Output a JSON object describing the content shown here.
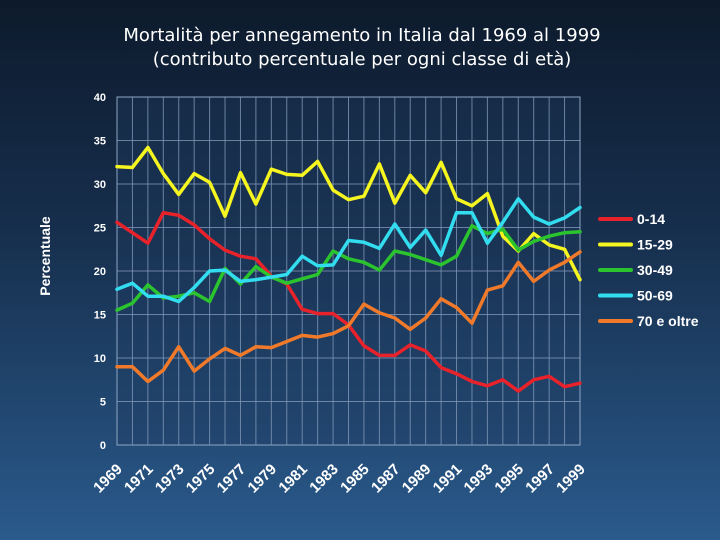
{
  "chart_data": {
    "type": "line",
    "title_lines": [
      "Mortalità per annegamento in Italia dal 1969 al 1999",
      "(contributo percentuale per ogni classe di età)"
    ],
    "xlabel": "",
    "ylabel": "Percentuale",
    "ylim": [
      0,
      40
    ],
    "yticks": [
      0,
      5,
      10,
      15,
      20,
      25,
      30,
      35,
      40
    ],
    "x": [
      1969,
      1970,
      1971,
      1972,
      1973,
      1974,
      1975,
      1976,
      1977,
      1978,
      1979,
      1980,
      1981,
      1982,
      1983,
      1984,
      1985,
      1986,
      1987,
      1988,
      1989,
      1990,
      1991,
      1992,
      1993,
      1994,
      1995,
      1996,
      1997,
      1998,
      1999
    ],
    "xtick_labels": [
      "1969",
      "1971",
      "1973",
      "1975",
      "1977",
      "1979",
      "1981",
      "1983",
      "1985",
      "1987",
      "1989",
      "1991",
      "1993",
      "1995",
      "1997",
      "1999"
    ],
    "grid": true,
    "legend_position": "right",
    "series": [
      {
        "name": "0-14",
        "color": "#e8222a",
        "values": [
          25.6,
          24.4,
          23.2,
          26.7,
          26.4,
          25.3,
          23.7,
          22.4,
          21.7,
          21.4,
          19.4,
          18.5,
          15.6,
          15.1,
          15.1,
          13.8,
          11.4,
          10.3,
          10.3,
          11.5,
          10.8,
          8.9,
          8.2,
          7.3,
          6.8,
          7.5,
          6.2,
          7.5,
          7.9,
          6.7,
          7.1
        ]
      },
      {
        "name": "15-29",
        "color": "#f5f51f",
        "values": [
          32.0,
          31.9,
          34.2,
          31.2,
          28.8,
          31.2,
          30.2,
          26.3,
          31.3,
          27.7,
          31.7,
          31.1,
          31.0,
          32.6,
          29.3,
          28.2,
          28.6,
          32.3,
          27.8,
          31.0,
          29.0,
          32.5,
          28.3,
          27.5,
          28.9,
          24.0,
          22.3,
          24.3,
          23.0,
          22.5,
          19.0
        ]
      },
      {
        "name": "30-49",
        "color": "#2bc42f",
        "values": [
          15.5,
          16.3,
          18.4,
          16.9,
          17.1,
          17.5,
          16.5,
          20.3,
          18.5,
          20.5,
          19.3,
          18.6,
          19.1,
          19.6,
          22.3,
          21.4,
          21.0,
          20.1,
          22.3,
          21.9,
          21.3,
          20.7,
          21.7,
          25.2,
          24.3,
          24.8,
          22.4,
          23.4,
          24.0,
          24.4,
          24.5
        ]
      },
      {
        "name": "50-69",
        "color": "#33ddf0",
        "values": [
          17.9,
          18.6,
          17.1,
          17.1,
          16.5,
          18.1,
          20.0,
          20.1,
          18.8,
          19.0,
          19.3,
          19.6,
          21.7,
          20.6,
          20.7,
          23.5,
          23.3,
          22.6,
          25.4,
          22.7,
          24.7,
          21.8,
          26.7,
          26.7,
          23.2,
          25.6,
          28.3,
          26.2,
          25.4,
          26.1,
          27.3
        ]
      },
      {
        "name": "70 e oltre",
        "color": "#f07a2a",
        "values": [
          9.0,
          9.0,
          7.3,
          8.6,
          11.3,
          8.5,
          9.9,
          11.1,
          10.3,
          11.3,
          11.2,
          11.9,
          12.6,
          12.4,
          12.8,
          13.7,
          16.2,
          15.2,
          14.6,
          13.3,
          14.6,
          16.8,
          15.8,
          14.0,
          17.8,
          18.3,
          21.0,
          18.8,
          20.1,
          21.0,
          22.2
        ]
      }
    ]
  }
}
